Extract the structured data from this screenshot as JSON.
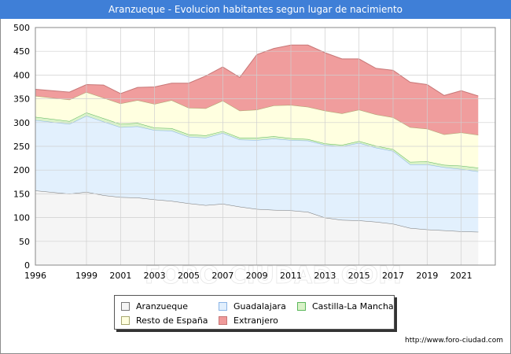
{
  "header": {
    "title": "Aranzueque - Evolucion habitantes segun lugar de nacimiento"
  },
  "watermark": "FORO-CIUDAD.COM",
  "source": "http://www.foro-ciudad.com",
  "chart_data": {
    "type": "area",
    "stacked": true,
    "title": "Aranzueque - Evolucion habitantes segun lugar de nacimiento",
    "xlabel": "",
    "ylabel": "",
    "x": [
      1996,
      1998,
      1999,
      2000,
      2001,
      2002,
      2003,
      2004,
      2005,
      2006,
      2007,
      2008,
      2009,
      2010,
      2011,
      2012,
      2013,
      2014,
      2015,
      2016,
      2017,
      2018,
      2019,
      2020,
      2021,
      2022
    ],
    "xlim": [
      1996,
      2023
    ],
    "ylim": [
      0,
      500
    ],
    "xticks": [
      1996,
      1999,
      2001,
      2003,
      2005,
      2007,
      2009,
      2011,
      2013,
      2015,
      2017,
      2019,
      2021
    ],
    "yticks": [
      0,
      50,
      100,
      150,
      200,
      250,
      300,
      350,
      400,
      450,
      500
    ],
    "grid": true,
    "legend_position": "bottom",
    "series": [
      {
        "name": "Aranzueque",
        "color": "#f5f5f5",
        "stroke": "#777777",
        "values": [
          157,
          150,
          154,
          147,
          143,
          142,
          138,
          135,
          130,
          126,
          129,
          123,
          118,
          116,
          115,
          112,
          100,
          95,
          94,
          91,
          87,
          78,
          75,
          73,
          71,
          70
        ]
      },
      {
        "name": "Guadalajara",
        "color": "#e1effd",
        "stroke": "#8ab4e6",
        "values": [
          148,
          147,
          160,
          155,
          147,
          150,
          146,
          148,
          140,
          142,
          149,
          141,
          145,
          150,
          148,
          150,
          153,
          155,
          163,
          156,
          153,
          134,
          137,
          133,
          131,
          127
        ]
      },
      {
        "name": "Castilla-La Mancha",
        "color": "#d9f2c8",
        "stroke": "#5cb85c",
        "values": [
          7,
          6,
          7,
          7,
          7,
          7,
          5,
          5,
          5,
          5,
          4,
          4,
          5,
          5,
          4,
          3,
          3,
          3,
          4,
          4,
          4,
          5,
          6,
          5,
          7,
          8
        ]
      },
      {
        "name": "Resto de España",
        "color": "#ffffdf",
        "stroke": "#a8a870",
        "values": [
          44,
          45,
          43,
          43,
          43,
          48,
          50,
          59,
          56,
          57,
          64,
          57,
          59,
          65,
          70,
          68,
          69,
          66,
          66,
          66,
          67,
          73,
          69,
          64,
          70,
          69
        ]
      },
      {
        "name": "Extranjero",
        "color": "#ef9a9a",
        "stroke": "#c77777",
        "values": [
          14,
          16,
          16,
          27,
          21,
          27,
          36,
          36,
          52,
          68,
          71,
          70,
          116,
          120,
          126,
          130,
          122,
          115,
          107,
          97,
          99,
          95,
          93,
          82,
          88,
          82
        ]
      }
    ]
  }
}
